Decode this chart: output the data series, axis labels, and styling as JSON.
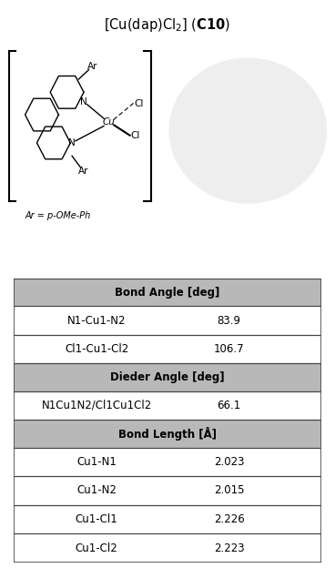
{
  "title_part1": "[Cu(dap)Cl",
  "title_sub2": "2",
  "title_part2": "] (",
  "title_bold": "C10",
  "title_part3": ")",
  "ar_label": "Ar = p-OMe-Ph",
  "table_header_bg": "#b8b8b8",
  "table_border": "#444444",
  "section_headers": [
    "Bond Angle [deg]",
    "Dieder Angle [deg]",
    "Bond Length [Å]"
  ],
  "bond_angle_rows": [
    [
      "N1-Cu1-N2",
      "83.9"
    ],
    [
      "Cl1-Cu1-Cl2",
      "106.7"
    ]
  ],
  "dieder_rows": [
    [
      "N1Cu1N2/Cl1Cu1Cl2",
      "66.1"
    ]
  ],
  "bond_length_rows": [
    [
      "Cu1-N1",
      "2.023"
    ],
    [
      "Cu1-N2",
      "2.015"
    ],
    [
      "Cu1-Cl1",
      "2.226"
    ],
    [
      "Cu1-Cl2",
      "2.223"
    ]
  ],
  "fig_width": 3.68,
  "fig_height": 6.24,
  "dpi": 100
}
